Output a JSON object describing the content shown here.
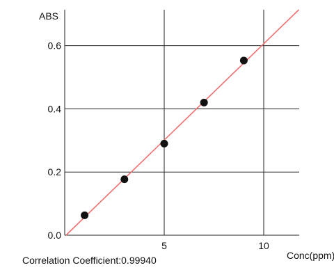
{
  "chart_data": {
    "type": "scatter",
    "title": "",
    "ylabel": "ABS",
    "xlabel": "Conc(ppm)",
    "xlim": [
      0,
      12
    ],
    "ylim": [
      0,
      0.7
    ],
    "x_ticks": [
      5,
      10
    ],
    "x_tick_labels": [
      "5",
      "10"
    ],
    "y_ticks": [
      0.0,
      0.2,
      0.4,
      0.6
    ],
    "y_tick_labels": [
      "0.0",
      "0.2",
      "0.4",
      "0.6"
    ],
    "grid": true,
    "series": [
      {
        "points": [
          {
            "x": 1,
            "y": 0.063
          },
          {
            "x": 3,
            "y": 0.177
          },
          {
            "x": 5,
            "y": 0.29
          },
          {
            "x": 7,
            "y": 0.42
          },
          {
            "x": 9,
            "y": 0.553
          }
        ]
      }
    ],
    "fit_line": {
      "type": "linear",
      "slope": 0.061,
      "intercept": -0.004,
      "color": "#f07070"
    },
    "colors": {
      "points": "#111111",
      "grid": "#222222"
    }
  },
  "annotation": "Correlation Coefficient:0.99940"
}
